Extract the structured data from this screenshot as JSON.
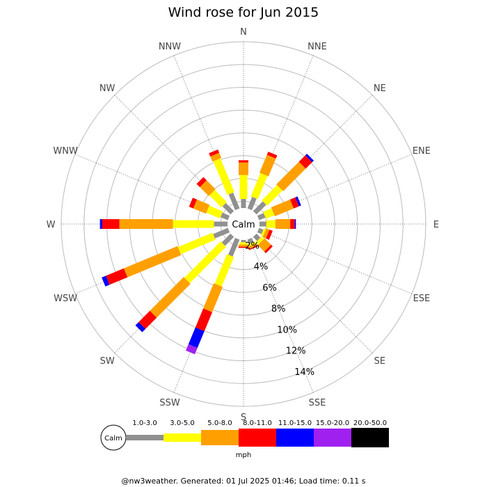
{
  "chart_data": {
    "type": "wind-rose",
    "title": "Wind rose for Jun 2015",
    "directions": [
      "N",
      "NNE",
      "NE",
      "ENE",
      "E",
      "ESE",
      "SE",
      "SSE",
      "S",
      "SSW",
      "SW",
      "WSW",
      "W",
      "WNW",
      "NW",
      "NNW"
    ],
    "radial_ticks": [
      "2%",
      "4%",
      "6%",
      "8%",
      "10%",
      "12%",
      "14%"
    ],
    "radial_tick_values": [
      2,
      4,
      6,
      8,
      10,
      12,
      14
    ],
    "rmax": 16,
    "calm_label": "Calm",
    "calm_radius_pct": 1.4,
    "speed_bins": [
      {
        "label": "1.0-3.0",
        "color": "#909090"
      },
      {
        "label": "3.0-5.0",
        "color": "#ffff00"
      },
      {
        "label": "5.0-8.0",
        "color": "#ffa000"
      },
      {
        "label": "8.0-11.0",
        "color": "#ff0000"
      },
      {
        "label": "11.0-15.0",
        "color": "#0000ff"
      },
      {
        "label": "15.0-20.0",
        "color": "#a020f0"
      },
      {
        "label": "20.0-50.0",
        "color": "#000000"
      }
    ],
    "unit_label": "mph",
    "cumulative": [
      [
        2.2,
        4.3,
        5.4,
        5.6,
        5.6,
        5.6,
        5.6
      ],
      [
        2.5,
        4.7,
        6.4,
        6.7,
        6.7,
        6.7,
        6.7
      ],
      [
        2.6,
        4.5,
        7.3,
        8.1,
        8.3,
        8.3,
        8.3
      ],
      [
        2.0,
        2.8,
        4.6,
        5.1,
        5.3,
        5.3,
        5.3
      ],
      [
        2.0,
        2.8,
        4.1,
        4.5,
        4.6,
        4.6,
        4.6
      ],
      [
        1.8,
        2.0,
        2.3,
        2.6,
        2.6,
        2.6,
        2.6
      ],
      [
        1.9,
        2.2,
        3.0,
        3.2,
        3.2,
        3.2,
        3.2
      ],
      [
        1.8,
        2.0,
        2.2,
        2.3,
        2.3,
        2.3,
        2.3
      ],
      [
        1.6,
        1.8,
        2.0,
        2.1,
        2.1,
        2.1,
        2.1
      ],
      [
        3.0,
        5.8,
        8.2,
        10.0,
        11.6,
        12.2,
        12.2
      ],
      [
        2.5,
        7.0,
        11.2,
        12.6,
        13.0,
        13.0,
        13.0
      ],
      [
        2.8,
        6.1,
        11.2,
        12.9,
        13.3,
        13.3,
        13.3
      ],
      [
        2.6,
        6.2,
        10.9,
        12.4,
        12.6,
        12.6,
        12.6
      ],
      [
        2.1,
        3.4,
        4.6,
        5.0,
        5.0,
        5.0,
        5.0
      ],
      [
        2.4,
        3.9,
        5.0,
        5.4,
        5.4,
        5.4,
        5.4
      ],
      [
        2.9,
        6.1,
        6.6,
        6.9,
        6.9,
        6.9,
        6.9
      ]
    ]
  },
  "footer": "@nw3weather. Generated: 01 Jul 2025 01:46; Load time: 0.11 s"
}
